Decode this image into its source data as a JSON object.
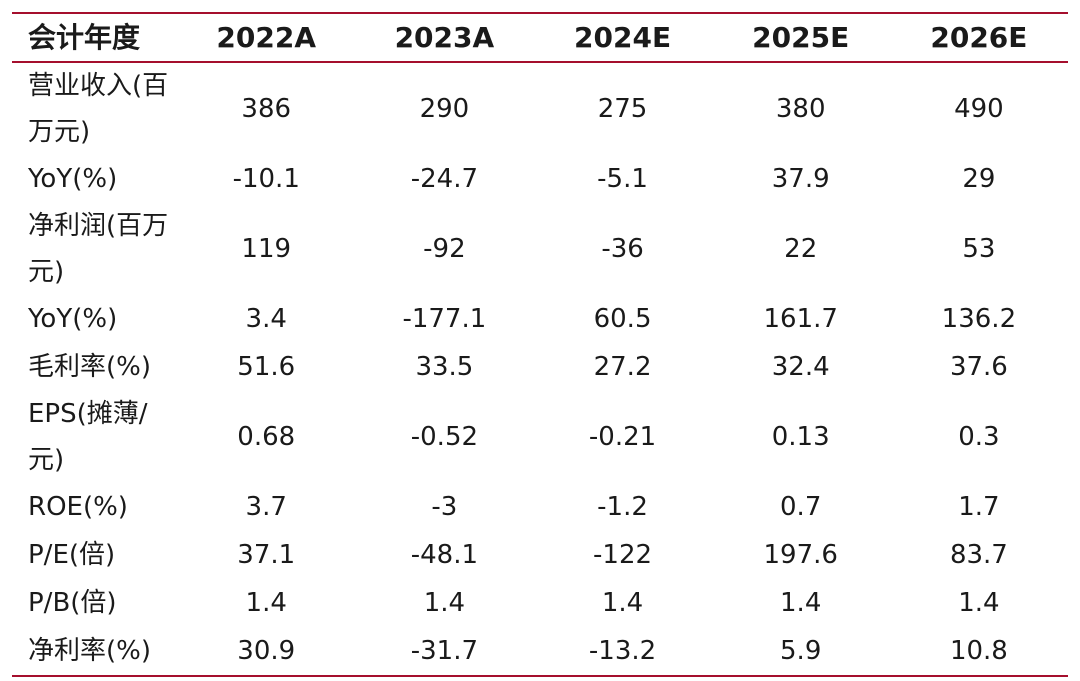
{
  "table": {
    "headers": [
      "会计年度",
      "2022A",
      "2023A",
      "2024E",
      "2025E",
      "2026E"
    ],
    "rows": [
      {
        "label": "营业收入(百万元)",
        "values": [
          "386",
          "290",
          "275",
          "380",
          "490"
        ]
      },
      {
        "label": "YoY(%)",
        "values": [
          "-10.1",
          "-24.7",
          "-5.1",
          "37.9",
          "29"
        ]
      },
      {
        "label": "净利润(百万元)",
        "values": [
          "119",
          "-92",
          "-36",
          "22",
          "53"
        ]
      },
      {
        "label": "YoY(%)",
        "values": [
          "3.4",
          "-177.1",
          "60.5",
          "161.7",
          "136.2"
        ]
      },
      {
        "label": "毛利率(%)",
        "values": [
          "51.6",
          "33.5",
          "27.2",
          "32.4",
          "37.6"
        ]
      },
      {
        "label": "EPS(摊薄/元)",
        "values": [
          "0.68",
          "-0.52",
          "-0.21",
          "0.13",
          "0.3"
        ]
      },
      {
        "label": "ROE(%)",
        "values": [
          "3.7",
          "-3",
          "-1.2",
          "0.7",
          "1.7"
        ]
      },
      {
        "label": "P/E(倍)",
        "values": [
          "37.1",
          "-48.1",
          "-122",
          "197.6",
          "83.7"
        ]
      },
      {
        "label": "P/B(倍)",
        "values": [
          "1.4",
          "1.4",
          "1.4",
          "1.4",
          "1.4"
        ]
      },
      {
        "label": "净利率(%)",
        "values": [
          "30.9",
          "-31.7",
          "-13.2",
          "5.9",
          "10.8"
        ]
      }
    ]
  },
  "colors": {
    "rule": "#a50f2d",
    "text": "#1a1a1a"
  }
}
